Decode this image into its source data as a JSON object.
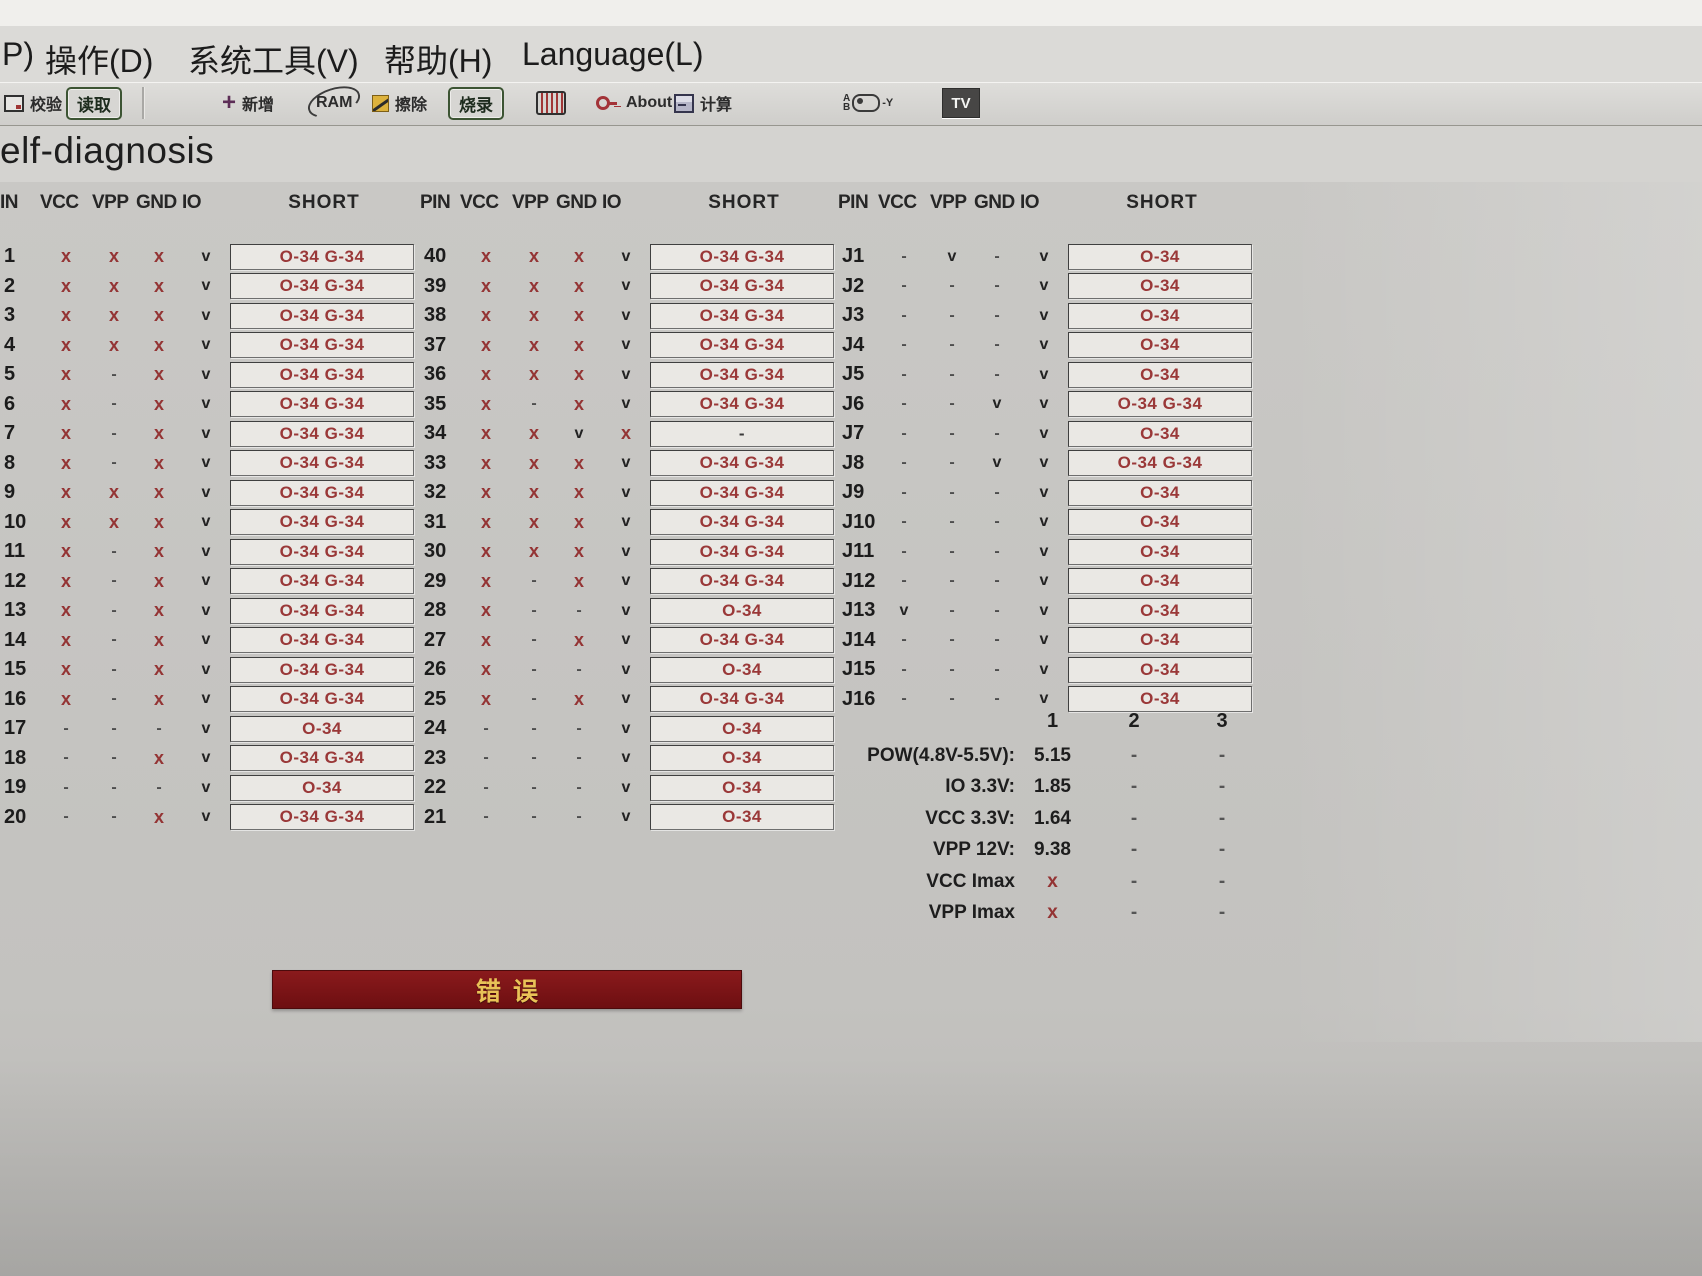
{
  "menu": {
    "items": [
      "P)",
      "操作(D)",
      "系统工具(V)",
      "帮助(H)",
      "Language(L)"
    ]
  },
  "toolbar": {
    "verify_label": "校验",
    "read_label": "读取",
    "add_icon": "+",
    "add_label": "新增",
    "ram_label": "RAM",
    "erase_label": "擦除",
    "burn_label": "烧录",
    "about_label": "About",
    "calc_label": "计算",
    "aby_a": "A",
    "aby_b": "B",
    "aby_suffix": "-Y",
    "tv_label": "TV"
  },
  "page": {
    "title": "elf-diagnosis"
  },
  "pin_tables": [
    {
      "headers": [
        "IN",
        "VCC",
        "VPP",
        "GND",
        "IO",
        "SHORT"
      ],
      "rows": [
        {
          "pin": "1",
          "vcc": "x",
          "vpp": "x",
          "gnd": "x",
          "io": "v",
          "short": "O-34 G-34"
        },
        {
          "pin": "2",
          "vcc": "x",
          "vpp": "x",
          "gnd": "x",
          "io": "v",
          "short": "O-34 G-34"
        },
        {
          "pin": "3",
          "vcc": "x",
          "vpp": "x",
          "gnd": "x",
          "io": "v",
          "short": "O-34 G-34"
        },
        {
          "pin": "4",
          "vcc": "x",
          "vpp": "x",
          "gnd": "x",
          "io": "v",
          "short": "O-34 G-34"
        },
        {
          "pin": "5",
          "vcc": "x",
          "vpp": "-",
          "gnd": "x",
          "io": "v",
          "short": "O-34 G-34"
        },
        {
          "pin": "6",
          "vcc": "x",
          "vpp": "-",
          "gnd": "x",
          "io": "v",
          "short": "O-34 G-34"
        },
        {
          "pin": "7",
          "vcc": "x",
          "vpp": "-",
          "gnd": "x",
          "io": "v",
          "short": "O-34 G-34"
        },
        {
          "pin": "8",
          "vcc": "x",
          "vpp": "-",
          "gnd": "x",
          "io": "v",
          "short": "O-34 G-34"
        },
        {
          "pin": "9",
          "vcc": "x",
          "vpp": "x",
          "gnd": "x",
          "io": "v",
          "short": "O-34 G-34"
        },
        {
          "pin": "10",
          "vcc": "x",
          "vpp": "x",
          "gnd": "x",
          "io": "v",
          "short": "O-34 G-34"
        },
        {
          "pin": "11",
          "vcc": "x",
          "vpp": "-",
          "gnd": "x",
          "io": "v",
          "short": "O-34 G-34"
        },
        {
          "pin": "12",
          "vcc": "x",
          "vpp": "-",
          "gnd": "x",
          "io": "v",
          "short": "O-34 G-34"
        },
        {
          "pin": "13",
          "vcc": "x",
          "vpp": "-",
          "gnd": "x",
          "io": "v",
          "short": "O-34 G-34"
        },
        {
          "pin": "14",
          "vcc": "x",
          "vpp": "-",
          "gnd": "x",
          "io": "v",
          "short": "O-34 G-34"
        },
        {
          "pin": "15",
          "vcc": "x",
          "vpp": "-",
          "gnd": "x",
          "io": "v",
          "short": "O-34 G-34"
        },
        {
          "pin": "16",
          "vcc": "x",
          "vpp": "-",
          "gnd": "x",
          "io": "v",
          "short": "O-34 G-34"
        },
        {
          "pin": "17",
          "vcc": "-",
          "vpp": "-",
          "gnd": "-",
          "io": "v",
          "short": "O-34"
        },
        {
          "pin": "18",
          "vcc": "-",
          "vpp": "-",
          "gnd": "x",
          "io": "v",
          "short": "O-34 G-34"
        },
        {
          "pin": "19",
          "vcc": "-",
          "vpp": "-",
          "gnd": "-",
          "io": "v",
          "short": "O-34"
        },
        {
          "pin": "20",
          "vcc": "-",
          "vpp": "-",
          "gnd": "x",
          "io": "v",
          "short": "O-34 G-34"
        }
      ]
    },
    {
      "headers": [
        "PIN",
        "VCC",
        "VPP",
        "GND",
        "IO",
        "SHORT"
      ],
      "rows": [
        {
          "pin": "40",
          "vcc": "x",
          "vpp": "x",
          "gnd": "x",
          "io": "v",
          "short": "O-34 G-34"
        },
        {
          "pin": "39",
          "vcc": "x",
          "vpp": "x",
          "gnd": "x",
          "io": "v",
          "short": "O-34 G-34"
        },
        {
          "pin": "38",
          "vcc": "x",
          "vpp": "x",
          "gnd": "x",
          "io": "v",
          "short": "O-34 G-34"
        },
        {
          "pin": "37",
          "vcc": "x",
          "vpp": "x",
          "gnd": "x",
          "io": "v",
          "short": "O-34 G-34"
        },
        {
          "pin": "36",
          "vcc": "x",
          "vpp": "x",
          "gnd": "x",
          "io": "v",
          "short": "O-34 G-34"
        },
        {
          "pin": "35",
          "vcc": "x",
          "vpp": "-",
          "gnd": "x",
          "io": "v",
          "short": "O-34 G-34"
        },
        {
          "pin": "34",
          "vcc": "x",
          "vpp": "x",
          "gnd": "v",
          "io": "x",
          "short": "-"
        },
        {
          "pin": "33",
          "vcc": "x",
          "vpp": "x",
          "gnd": "x",
          "io": "v",
          "short": "O-34 G-34"
        },
        {
          "pin": "32",
          "vcc": "x",
          "vpp": "x",
          "gnd": "x",
          "io": "v",
          "short": "O-34 G-34"
        },
        {
          "pin": "31",
          "vcc": "x",
          "vpp": "x",
          "gnd": "x",
          "io": "v",
          "short": "O-34 G-34"
        },
        {
          "pin": "30",
          "vcc": "x",
          "vpp": "x",
          "gnd": "x",
          "io": "v",
          "short": "O-34 G-34"
        },
        {
          "pin": "29",
          "vcc": "x",
          "vpp": "-",
          "gnd": "x",
          "io": "v",
          "short": "O-34 G-34"
        },
        {
          "pin": "28",
          "vcc": "x",
          "vpp": "-",
          "gnd": "-",
          "io": "v",
          "short": "O-34"
        },
        {
          "pin": "27",
          "vcc": "x",
          "vpp": "-",
          "gnd": "x",
          "io": "v",
          "short": "O-34 G-34"
        },
        {
          "pin": "26",
          "vcc": "x",
          "vpp": "-",
          "gnd": "-",
          "io": "v",
          "short": "O-34"
        },
        {
          "pin": "25",
          "vcc": "x",
          "vpp": "-",
          "gnd": "x",
          "io": "v",
          "short": "O-34 G-34"
        },
        {
          "pin": "24",
          "vcc": "-",
          "vpp": "-",
          "gnd": "-",
          "io": "v",
          "short": "O-34"
        },
        {
          "pin": "23",
          "vcc": "-",
          "vpp": "-",
          "gnd": "-",
          "io": "v",
          "short": "O-34"
        },
        {
          "pin": "22",
          "vcc": "-",
          "vpp": "-",
          "gnd": "-",
          "io": "v",
          "short": "O-34"
        },
        {
          "pin": "21",
          "vcc": "-",
          "vpp": "-",
          "gnd": "-",
          "io": "v",
          "short": "O-34"
        }
      ]
    },
    {
      "headers": [
        "PIN",
        "VCC",
        "VPP",
        "GND",
        "IO",
        "SHORT"
      ],
      "rows": [
        {
          "pin": "J1",
          "vcc": "-",
          "vpp": "v",
          "gnd": "-",
          "io": "v",
          "short": "O-34"
        },
        {
          "pin": "J2",
          "vcc": "-",
          "vpp": "-",
          "gnd": "-",
          "io": "v",
          "short": "O-34"
        },
        {
          "pin": "J3",
          "vcc": "-",
          "vpp": "-",
          "gnd": "-",
          "io": "v",
          "short": "O-34"
        },
        {
          "pin": "J4",
          "vcc": "-",
          "vpp": "-",
          "gnd": "-",
          "io": "v",
          "short": "O-34"
        },
        {
          "pin": "J5",
          "vcc": "-",
          "vpp": "-",
          "gnd": "-",
          "io": "v",
          "short": "O-34"
        },
        {
          "pin": "J6",
          "vcc": "-",
          "vpp": "-",
          "gnd": "v",
          "io": "v",
          "short": "O-34 G-34"
        },
        {
          "pin": "J7",
          "vcc": "-",
          "vpp": "-",
          "gnd": "-",
          "io": "v",
          "short": "O-34"
        },
        {
          "pin": "J8",
          "vcc": "-",
          "vpp": "-",
          "gnd": "v",
          "io": "v",
          "short": "O-34 G-34"
        },
        {
          "pin": "J9",
          "vcc": "-",
          "vpp": "-",
          "gnd": "-",
          "io": "v",
          "short": "O-34"
        },
        {
          "pin": "J10",
          "vcc": "-",
          "vpp": "-",
          "gnd": "-",
          "io": "v",
          "short": "O-34"
        },
        {
          "pin": "J11",
          "vcc": "-",
          "vpp": "-",
          "gnd": "-",
          "io": "v",
          "short": "O-34"
        },
        {
          "pin": "J12",
          "vcc": "-",
          "vpp": "-",
          "gnd": "-",
          "io": "v",
          "short": "O-34"
        },
        {
          "pin": "J13",
          "vcc": "v",
          "vpp": "-",
          "gnd": "-",
          "io": "v",
          "short": "O-34"
        },
        {
          "pin": "J14",
          "vcc": "-",
          "vpp": "-",
          "gnd": "-",
          "io": "v",
          "short": "O-34"
        },
        {
          "pin": "J15",
          "vcc": "-",
          "vpp": "-",
          "gnd": "-",
          "io": "v",
          "short": "O-34"
        },
        {
          "pin": "J16",
          "vcc": "-",
          "vpp": "-",
          "gnd": "-",
          "io": "v",
          "short": "O-34"
        }
      ]
    }
  ],
  "power": {
    "col_headers": [
      "1",
      "2",
      "3"
    ],
    "rows": [
      {
        "label": "POW(4.8V-5.5V):",
        "values": [
          "5.15",
          "-",
          "-"
        ]
      },
      {
        "label": "IO  3.3V:",
        "values": [
          "1.85",
          "-",
          "-"
        ]
      },
      {
        "label": "VCC 3.3V:",
        "values": [
          "1.64",
          "-",
          "-"
        ]
      },
      {
        "label": "VPP  12V:",
        "values": [
          "9.38",
          "-",
          "-"
        ]
      },
      {
        "label": "VCC Imax",
        "values": [
          "x",
          "-",
          "-"
        ]
      },
      {
        "label": "VPP Imax",
        "values": [
          "x",
          "-",
          "-"
        ]
      }
    ]
  },
  "status": {
    "error_label": "错误"
  },
  "colors": {
    "mark_red": "#943434",
    "error_bg": "#7b1315",
    "error_text": "#e9c257"
  }
}
